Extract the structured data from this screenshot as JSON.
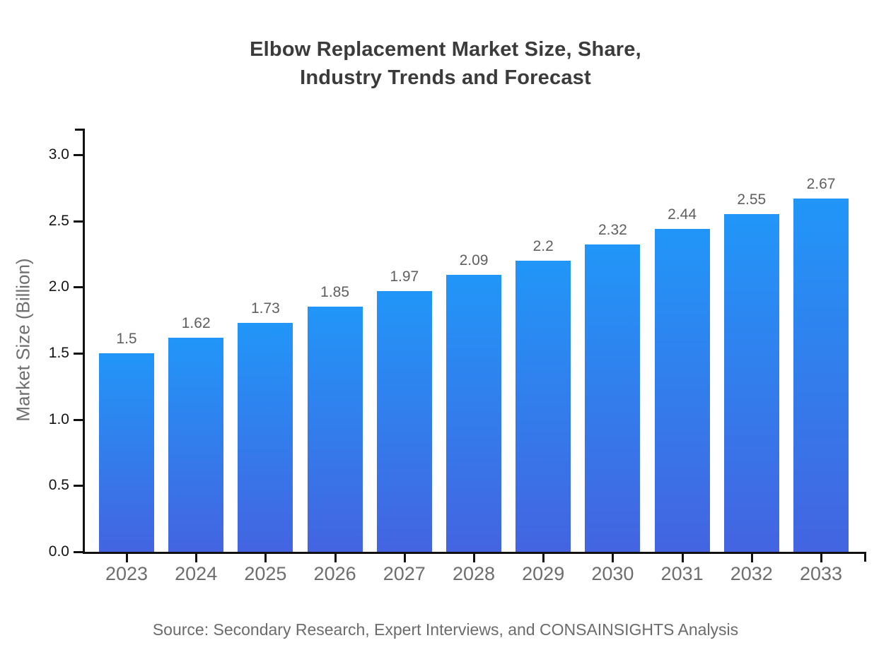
{
  "header": {
    "title_lines": [
      "Elbow Replacement Market Size, Share,",
      "Industry Trends and Forecast"
    ]
  },
  "chart_data": {
    "type": "bar",
    "title": "Elbow Replacement Market Size, Share, Industry Trends and Forecast",
    "categories": [
      "2023",
      "2024",
      "2025",
      "2026",
      "2027",
      "2028",
      "2029",
      "2030",
      "2031",
      "2032",
      "2033"
    ],
    "values": [
      1.5,
      1.62,
      1.73,
      1.85,
      1.97,
      2.09,
      2.2,
      2.32,
      2.44,
      2.55,
      2.67
    ],
    "value_labels": [
      "1.5",
      "1.62",
      "1.73",
      "1.85",
      "1.97",
      "2.09",
      "2.2",
      "2.32",
      "2.44",
      "2.55",
      "2.67"
    ],
    "xlabel": "",
    "ylabel": "Market Size (Billion)",
    "ylim": [
      0,
      3.2
    ],
    "yticks": [
      0.0,
      0.5,
      1.0,
      1.5,
      2.0,
      2.5,
      3.0
    ],
    "ytick_labels": [
      "0.0",
      "0.5",
      "1.0",
      "1.5",
      "2.0",
      "2.5",
      "3.0"
    ],
    "grid": false,
    "legend": false,
    "colors": {
      "bar_gradient_top": "#2196f8",
      "bar_gradient_bottom": "#4464e1",
      "axis": "#111111",
      "title_text": "#3b3b3b",
      "tick_text": "#141414",
      "category_text": "#6e6e6e",
      "value_label_text": "#5f5f5f"
    }
  },
  "footer": {
    "source": "Source: Secondary Research, Expert Interviews, and CONSAINSIGHTS Analysis"
  }
}
